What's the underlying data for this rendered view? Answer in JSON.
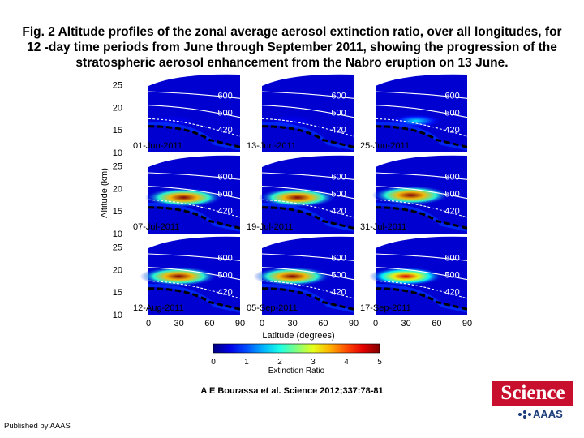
{
  "caption": "Fig. 2 Altitude profiles of the zonal average aerosol extinction ratio, over all longitudes, for 12 -day time periods from June through September 2011, showing the progression of the stratospheric aerosol enhancement from the Nabro eruption on 13 June.",
  "citation": "A E Bourassa et al. Science 2012;337:78-81",
  "published_by": "Published by AAAS",
  "logo": {
    "word": "Science",
    "org": "AAAS"
  },
  "colors": {
    "contour_line": "#ffffff",
    "tropopause_line": "#000000",
    "logo_red": "#c8102e"
  },
  "chart_data": {
    "type": "heatmap",
    "xlabel": "Latitude (degrees)",
    "ylabel": "Altitude (km)",
    "x_ticks": [
      0,
      30,
      60,
      90
    ],
    "y_ticks": [
      10,
      15,
      20,
      25
    ],
    "colorbar": {
      "label": "Extinction Ratio",
      "ticks": [
        0,
        1,
        2,
        3,
        4,
        5
      ],
      "range": [
        0,
        5
      ],
      "colormap": "jet"
    },
    "contour_labels": [
      "600",
      "500",
      "420"
    ],
    "grid": false,
    "panels": [
      {
        "date": "01-Jun-2011",
        "peak_ratio": 0.5,
        "peak_lat": 20,
        "peak_alt": 17
      },
      {
        "date": "13-Jun-2011",
        "peak_ratio": 0.6,
        "peak_lat": 25,
        "peak_alt": 17
      },
      {
        "date": "25-Jun-2011",
        "peak_ratio": 1.8,
        "peak_lat": 35,
        "peak_alt": 17
      },
      {
        "date": "07-Jul-2011",
        "peak_ratio": 5,
        "peak_lat": 30,
        "peak_alt": 18
      },
      {
        "date": "19-Jul-2011",
        "peak_ratio": 5,
        "peak_lat": 30,
        "peak_alt": 18
      },
      {
        "date": "31-Jul-2011",
        "peak_ratio": 5,
        "peak_lat": 30,
        "peak_alt": 18.5
      },
      {
        "date": "12-Aug-2011",
        "peak_ratio": 5,
        "peak_lat": 25,
        "peak_alt": 18.5
      },
      {
        "date": "05-Sep-2011",
        "peak_ratio": 5,
        "peak_lat": 25,
        "peak_alt": 18.5
      },
      {
        "date": "17-Sep-2011",
        "peak_ratio": 4.5,
        "peak_lat": 25,
        "peak_alt": 18.5
      }
    ]
  }
}
